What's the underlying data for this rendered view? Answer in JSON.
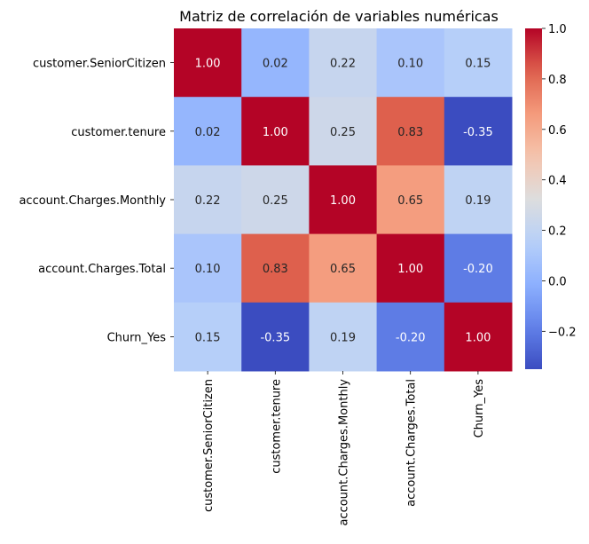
{
  "chart_data": {
    "type": "heatmap",
    "title": "Matriz de correlación de variables numéricas",
    "rows": [
      "customer.SeniorCitizen",
      "customer.tenure",
      "account.Charges.Monthly",
      "account.Charges.Total",
      "Churn_Yes"
    ],
    "columns": [
      "customer.SeniorCitizen",
      "customer.tenure",
      "account.Charges.Monthly",
      "account.Charges.Total",
      "Churn_Yes"
    ],
    "values": [
      [
        1.0,
        0.02,
        0.22,
        0.1,
        0.15
      ],
      [
        0.02,
        1.0,
        0.25,
        0.83,
        -0.35
      ],
      [
        0.22,
        0.25,
        1.0,
        0.65,
        0.19
      ],
      [
        0.1,
        0.83,
        0.65,
        1.0,
        -0.2
      ],
      [
        0.15,
        -0.35,
        0.19,
        -0.2,
        1.0
      ]
    ],
    "value_format": "0.00",
    "colormap": "coolwarm",
    "vmin": -0.35,
    "vmax": 1.0,
    "colorbar": {
      "ticks": [
        -0.2,
        0.0,
        0.2,
        0.4,
        0.6,
        0.8,
        1.0
      ],
      "tick_labels": [
        "−0.2",
        "0.0",
        "0.2",
        "0.4",
        "0.6",
        "0.8",
        "1.0"
      ]
    }
  }
}
